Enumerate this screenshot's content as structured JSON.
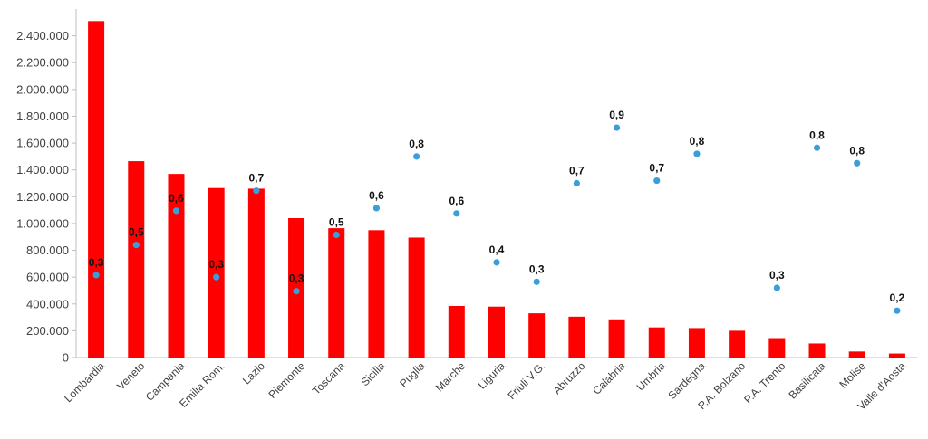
{
  "chart_data": {
    "type": "bar",
    "categories": [
      "Lombardia",
      "Veneto",
      "Campania",
      "Emilia Rom.",
      "Lazio",
      "Piemonte",
      "Toscana",
      "Sicilia",
      "Puglia",
      "Marche",
      "Liguria",
      "Friuli V.G.",
      "Abruzzo",
      "Calabria",
      "Umbria",
      "Sardegna",
      "P.A. Bolzano",
      "P.A. Trento",
      "Basilicata",
      "Molise",
      "Valle d'Aosta"
    ],
    "ylim": [
      0,
      2600000
    ],
    "yticks": [
      0,
      200000,
      400000,
      600000,
      800000,
      1000000,
      1200000,
      1400000,
      1600000,
      1800000,
      2000000,
      2200000,
      2400000
    ],
    "ytick_labels": [
      "0",
      "200.000",
      "400.000",
      "600.000",
      "800.000",
      "1.000.000",
      "1.200.000",
      "1.400.000",
      "1.600.000",
      "1.800.000",
      "2.000.000",
      "2.200.000",
      "2.400.000"
    ],
    "series": [
      {
        "type": "bar",
        "color": "#ff0000",
        "values": [
          2510000,
          1465000,
          1370000,
          1265000,
          1260000,
          1040000,
          965000,
          950000,
          895000,
          385000,
          380000,
          330000,
          305000,
          285000,
          225000,
          220000,
          200000,
          145000,
          105000,
          45000,
          30000
        ]
      },
      {
        "type": "scatter",
        "color": "#3a9fd8",
        "values": [
          0.3,
          0.5,
          0.6,
          0.3,
          0.7,
          0.3,
          0.5,
          0.6,
          0.8,
          0.6,
          0.4,
          0.3,
          0.7,
          0.9,
          0.7,
          0.8,
          null,
          0.3,
          0.8,
          0.8,
          0.2
        ],
        "labels": [
          "0,3",
          "0,5",
          "0,6",
          "0,3",
          "0,7",
          "0,3",
          "0,5",
          "0,6",
          "0,8",
          "0,6",
          "0,4",
          "0,3",
          "0,7",
          "0,9",
          "0,7",
          "0,8",
          "",
          "0,3",
          "0,8",
          "0,8",
          "0,2"
        ],
        "positions_in_y_units": [
          615000,
          840000,
          1095000,
          600000,
          1245000,
          495000,
          915000,
          1115000,
          1500000,
          1075000,
          710000,
          565000,
          1300000,
          1715000,
          1320000,
          1520000,
          null,
          520000,
          1565000,
          1450000,
          350000
        ]
      }
    ]
  }
}
